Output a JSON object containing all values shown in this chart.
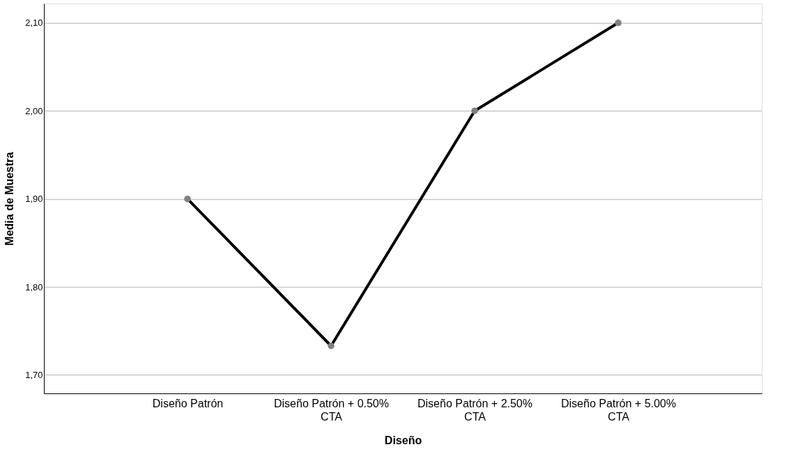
{
  "chart_data": {
    "type": "line",
    "xlabel": "Diseño",
    "ylabel": "Media de Muestra",
    "categories": [
      "Diseño Patrón",
      "Diseño Patrón + 0.50%\nCTA",
      "Diseño Patrón + 2.50%\nCTA",
      "Diseño Patrón + 5.00%\nCTA"
    ],
    "series": [
      {
        "color": "#000000",
        "values": [
          1.9,
          1.733,
          2.0,
          2.1
        ]
      }
    ],
    "ylim": [
      1.679,
      2.122
    ],
    "yticks": [
      {
        "value": 1.7,
        "label": "1,70"
      },
      {
        "value": 1.8,
        "label": "1,80"
      },
      {
        "value": 1.9,
        "label": "1,90"
      },
      {
        "value": 2.0,
        "label": "2,00"
      },
      {
        "value": 2.1,
        "label": "2,10"
      }
    ],
    "grid": "y",
    "marker": "circle",
    "line_style": "solid"
  }
}
